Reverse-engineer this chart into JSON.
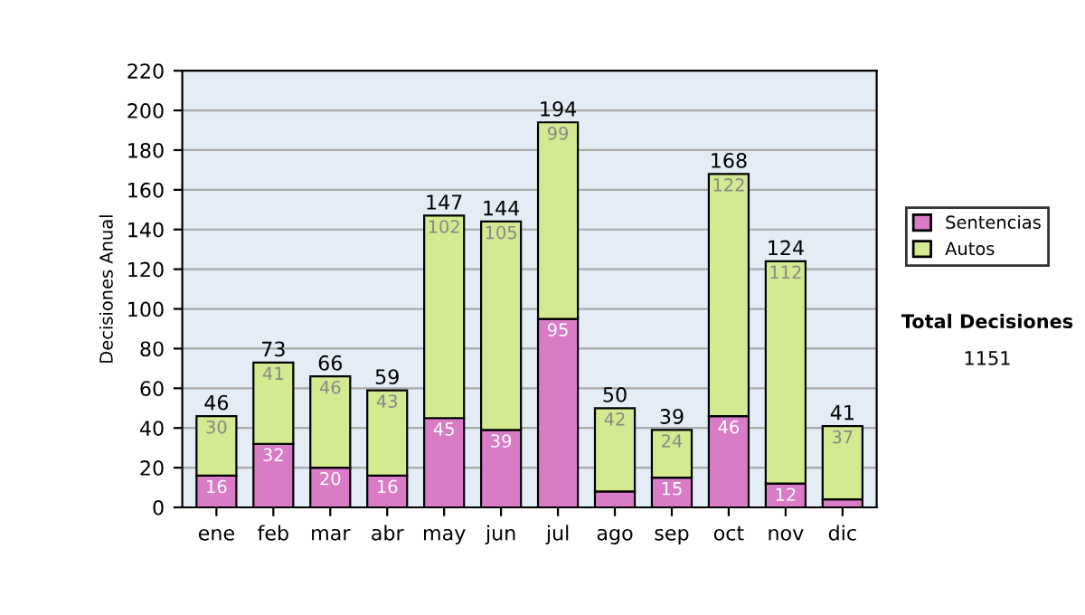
{
  "chart_data": {
    "type": "bar",
    "stacked": true,
    "ylabel": "Decisiones Anual",
    "categories": [
      "ene",
      "feb",
      "mar",
      "abr",
      "may",
      "jun",
      "jul",
      "ago",
      "sep",
      "oct",
      "nov",
      "dic"
    ],
    "series": [
      {
        "name": "Sentencias",
        "color": "#d97bc6",
        "values": [
          16,
          32,
          20,
          16,
          45,
          39,
          95,
          8,
          15,
          46,
          12,
          4
        ],
        "value_labels": [
          "16",
          "32",
          "20",
          "16",
          "45",
          "39",
          "95",
          null,
          "15",
          "46",
          "12",
          null
        ]
      },
      {
        "name": "Autos",
        "color": "#d3ea90",
        "values": [
          30,
          41,
          46,
          43,
          102,
          105,
          99,
          42,
          24,
          122,
          112,
          37
        ],
        "value_labels": [
          "30",
          "41",
          "46",
          "43",
          "102",
          "105",
          "99",
          "42",
          "24",
          "122",
          "112",
          "37"
        ]
      }
    ],
    "totals": [
      "46",
      "73",
      "66",
      "59",
      "147",
      "144",
      "194",
      "50",
      "39",
      "168",
      "124",
      "41"
    ],
    "ylim": [
      0,
      220
    ],
    "yticks": [
      0,
      20,
      40,
      60,
      80,
      100,
      120,
      140,
      160,
      180,
      200,
      220
    ],
    "grid": "y",
    "legend": "right",
    "annotations": [
      "Total Decisiones",
      "1151"
    ]
  }
}
